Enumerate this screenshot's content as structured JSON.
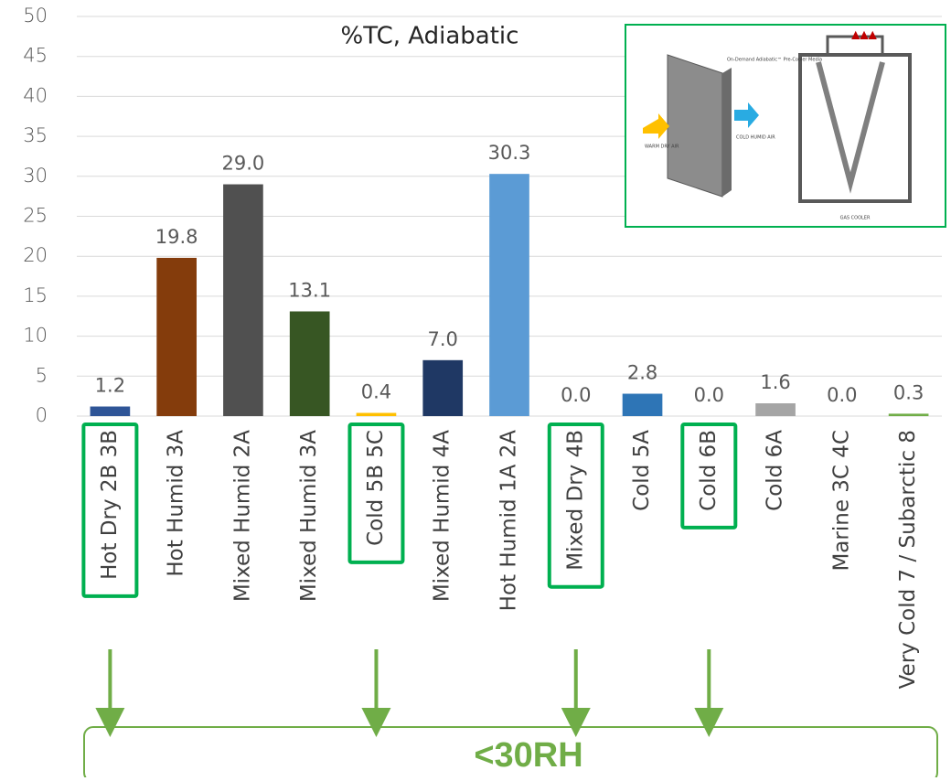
{
  "chart_data": {
    "type": "bar",
    "title": "%TC, Adiabatic",
    "categories": [
      "Hot Dry 2B 3B",
      "Hot Humid 3A",
      "Mixed Humid 2A",
      "Mixed Humid 3A",
      "Cold 5B 5C",
      "Mixed Humid 4A",
      "Hot Humid 1A 2A",
      "Mixed Dry 4B",
      "Cold 5A",
      "Cold 6B",
      "Cold 6A",
      "Marine 3C 4C",
      "Very Cold 7 / Subarctic 8"
    ],
    "values": [
      1.2,
      19.8,
      29.0,
      13.1,
      0.4,
      7.0,
      30.3,
      0.0,
      2.8,
      0.0,
      1.6,
      0.0,
      0.3
    ],
    "value_labels": [
      "1.2",
      "19.8",
      "29.0",
      "13.1",
      "0.4",
      "7.0",
      "30.3",
      "0.0",
      "2.8",
      "0.0",
      "1.6",
      "0.0",
      "0.3"
    ],
    "colors": [
      "#2f5597",
      "#843c0c",
      "#505050",
      "#375623",
      "#ffc000",
      "#1f3864",
      "#5b9bd5",
      "#4472c4",
      "#2e75b6",
      "#4472c4",
      "#a5a5a5",
      "#4472c4",
      "#70ad47"
    ],
    "ylim": [
      0,
      50
    ],
    "yticks": [
      0,
      5,
      10,
      15,
      20,
      25,
      30,
      35,
      40,
      45,
      50
    ],
    "grid": true,
    "highlighted": [
      0,
      4,
      7,
      9
    ],
    "annotation": "<30RH",
    "inset_labels": [
      "On-Demand Adiabatic™ Pre-Cooler Media",
      "WARM DRY AIR",
      "COLD HUMID AIR",
      "GAS COOLER"
    ]
  }
}
